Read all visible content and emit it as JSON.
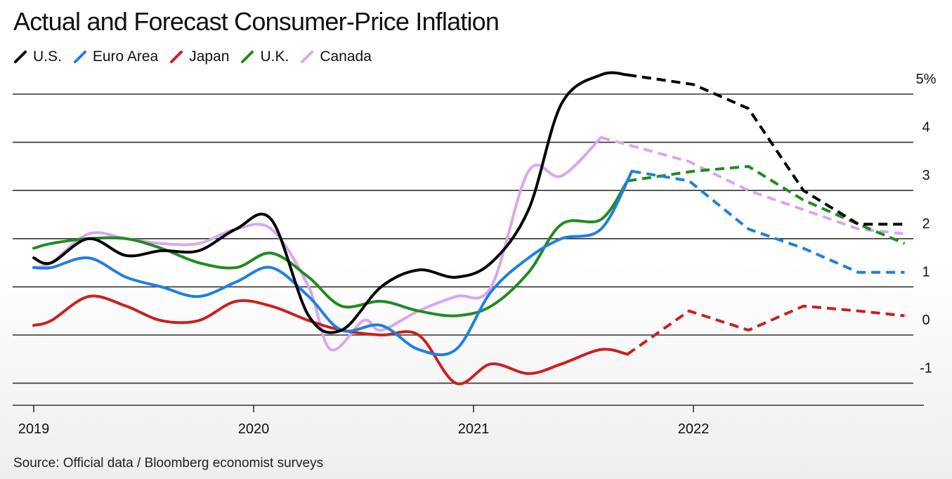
{
  "chart_data": {
    "type": "line",
    "title": "Actual and Forecast Consumer-Price Inflation",
    "source": "Source: Official data / Bloomberg economist surveys",
    "y_ticks": [
      "5%",
      "4",
      "3",
      "2",
      "1",
      "0",
      "-1"
    ],
    "y_tick_values": [
      5,
      4,
      3,
      2,
      1,
      0,
      -1
    ],
    "ylim": [
      -1.5,
      5.5
    ],
    "x_ticks": [
      "2019",
      "2020",
      "2021",
      "2022"
    ],
    "x_tick_values": [
      2019.0,
      2020.0,
      2021.0,
      2022.0
    ],
    "xlim": [
      2019.0,
      2023.0
    ],
    "grid": true,
    "legend_position": "top-left",
    "series": [
      {
        "name": "U.S.",
        "color": "#000000",
        "actual": [
          [
            2019.0,
            1.6
          ],
          [
            2019.08,
            1.5
          ],
          [
            2019.25,
            2.0
          ],
          [
            2019.42,
            1.65
          ],
          [
            2019.58,
            1.75
          ],
          [
            2019.75,
            1.75
          ],
          [
            2019.92,
            2.2
          ],
          [
            2020.08,
            2.4
          ],
          [
            2020.25,
            0.4
          ],
          [
            2020.4,
            0.1
          ],
          [
            2020.58,
            1.0
          ],
          [
            2020.75,
            1.35
          ],
          [
            2020.92,
            1.2
          ],
          [
            2021.08,
            1.5
          ],
          [
            2021.25,
            2.6
          ],
          [
            2021.4,
            4.8
          ],
          [
            2021.58,
            5.4
          ],
          [
            2021.7,
            5.4
          ]
        ],
        "forecast": [
          [
            2021.7,
            5.4
          ],
          [
            2022.0,
            5.2
          ],
          [
            2022.25,
            4.7
          ],
          [
            2022.5,
            3.0
          ],
          [
            2022.75,
            2.3
          ],
          [
            2022.96,
            2.3
          ]
        ]
      },
      {
        "name": "Euro Area",
        "color": "#1f7fe0",
        "actual": [
          [
            2019.0,
            1.4
          ],
          [
            2019.08,
            1.4
          ],
          [
            2019.25,
            1.6
          ],
          [
            2019.42,
            1.2
          ],
          [
            2019.58,
            1.0
          ],
          [
            2019.75,
            0.8
          ],
          [
            2019.92,
            1.1
          ],
          [
            2020.08,
            1.4
          ],
          [
            2020.25,
            0.8
          ],
          [
            2020.4,
            0.1
          ],
          [
            2020.58,
            0.2
          ],
          [
            2020.75,
            -0.3
          ],
          [
            2020.92,
            -0.3
          ],
          [
            2021.08,
            0.9
          ],
          [
            2021.25,
            1.6
          ],
          [
            2021.4,
            2.0
          ],
          [
            2021.58,
            2.2
          ],
          [
            2021.72,
            3.4
          ]
        ],
        "forecast": [
          [
            2021.72,
            3.4
          ],
          [
            2021.98,
            3.2
          ],
          [
            2022.25,
            2.2
          ],
          [
            2022.5,
            1.8
          ],
          [
            2022.75,
            1.3
          ],
          [
            2022.96,
            1.3
          ]
        ]
      },
      {
        "name": "Japan",
        "color": "#cc1f1f",
        "actual": [
          [
            2019.0,
            0.2
          ],
          [
            2019.08,
            0.3
          ],
          [
            2019.25,
            0.8
          ],
          [
            2019.42,
            0.6
          ],
          [
            2019.58,
            0.3
          ],
          [
            2019.75,
            0.3
          ],
          [
            2019.92,
            0.7
          ],
          [
            2020.08,
            0.6
          ],
          [
            2020.25,
            0.3
          ],
          [
            2020.4,
            0.1
          ],
          [
            2020.58,
            0.0
          ],
          [
            2020.75,
            0.0
          ],
          [
            2020.92,
            -1.0
          ],
          [
            2021.08,
            -0.6
          ],
          [
            2021.25,
            -0.8
          ],
          [
            2021.4,
            -0.6
          ],
          [
            2021.58,
            -0.3
          ],
          [
            2021.7,
            -0.4
          ]
        ],
        "forecast": [
          [
            2021.7,
            -0.4
          ],
          [
            2021.98,
            0.5
          ],
          [
            2022.25,
            0.1
          ],
          [
            2022.5,
            0.6
          ],
          [
            2022.75,
            0.5
          ],
          [
            2022.96,
            0.4
          ]
        ]
      },
      {
        "name": "U.K.",
        "color": "#1f8c1f",
        "actual": [
          [
            2019.0,
            1.8
          ],
          [
            2019.08,
            1.9
          ],
          [
            2019.25,
            2.0
          ],
          [
            2019.42,
            2.0
          ],
          [
            2019.58,
            1.8
          ],
          [
            2019.75,
            1.5
          ],
          [
            2019.92,
            1.4
          ],
          [
            2020.08,
            1.7
          ],
          [
            2020.25,
            1.2
          ],
          [
            2020.4,
            0.6
          ],
          [
            2020.58,
            0.7
          ],
          [
            2020.75,
            0.5
          ],
          [
            2020.92,
            0.4
          ],
          [
            2021.08,
            0.6
          ],
          [
            2021.25,
            1.3
          ],
          [
            2021.4,
            2.3
          ],
          [
            2021.58,
            2.4
          ],
          [
            2021.7,
            3.2
          ]
        ],
        "forecast": [
          [
            2021.7,
            3.2
          ],
          [
            2022.0,
            3.4
          ],
          [
            2022.25,
            3.5
          ],
          [
            2022.5,
            2.8
          ],
          [
            2022.75,
            2.3
          ],
          [
            2022.96,
            1.9
          ]
        ]
      },
      {
        "name": "Canada",
        "color": "#d9a6ef",
        "actual": [
          [
            2019.0,
            1.4
          ],
          [
            2019.08,
            1.5
          ],
          [
            2019.25,
            2.1
          ],
          [
            2019.42,
            2.0
          ],
          [
            2019.58,
            1.9
          ],
          [
            2019.75,
            1.9
          ],
          [
            2019.92,
            2.2
          ],
          [
            2020.08,
            2.2
          ],
          [
            2020.25,
            1.0
          ],
          [
            2020.35,
            -0.3
          ],
          [
            2020.5,
            0.3
          ],
          [
            2020.58,
            0.1
          ],
          [
            2020.75,
            0.5
          ],
          [
            2020.92,
            0.8
          ],
          [
            2021.08,
            1.0
          ],
          [
            2021.25,
            3.4
          ],
          [
            2021.4,
            3.3
          ],
          [
            2021.58,
            4.1
          ]
        ],
        "forecast": [
          [
            2021.58,
            4.1
          ],
          [
            2021.98,
            3.6
          ],
          [
            2022.25,
            3.0
          ],
          [
            2022.5,
            2.6
          ],
          [
            2022.75,
            2.2
          ],
          [
            2022.96,
            2.1
          ]
        ]
      }
    ]
  }
}
